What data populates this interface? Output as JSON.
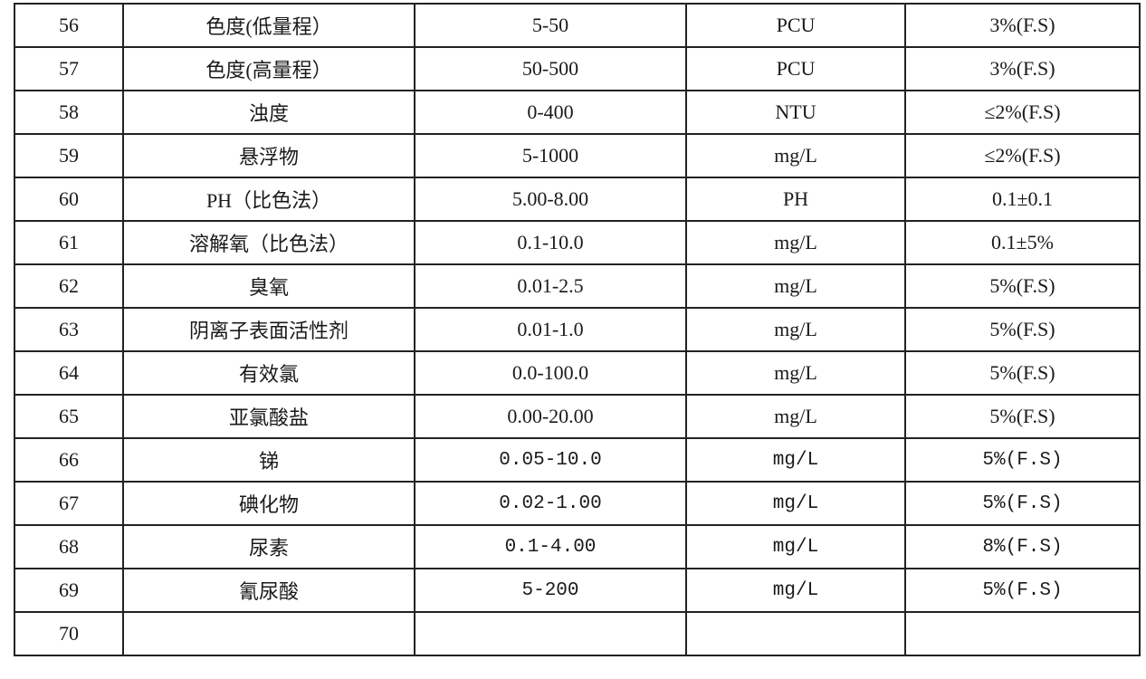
{
  "table": {
    "rows": [
      {
        "no": "56",
        "item": "色度(低量程）",
        "range": "5-50",
        "unit": "PCU",
        "accuracy": "3%(F.S)"
      },
      {
        "no": "57",
        "item": "色度(高量程）",
        "range": "50-500",
        "unit": "PCU",
        "accuracy": "3%(F.S)"
      },
      {
        "no": "58",
        "item": "浊度",
        "range": "0-400",
        "unit": "NTU",
        "accuracy": "≤2%(F.S)"
      },
      {
        "no": "59",
        "item": "悬浮物",
        "range": "5-1000",
        "unit": "mg/L",
        "accuracy": "≤2%(F.S)"
      },
      {
        "no": "60",
        "item": "PH（比色法）",
        "range": "5.00-8.00",
        "unit": "PH",
        "accuracy": "0.1±0.1"
      },
      {
        "no": "61",
        "item": "溶解氧（比色法）",
        "range": "0.1-10.0",
        "unit": "mg/L",
        "accuracy": "0.1±5%"
      },
      {
        "no": "62",
        "item": "臭氧",
        "range": "0.01-2.5",
        "unit": "mg/L",
        "accuracy": "5%(F.S)"
      },
      {
        "no": "63",
        "item": "阴离子表面活性剂",
        "range": "0.01-1.0",
        "unit": "mg/L",
        "accuracy": "5%(F.S)"
      },
      {
        "no": "64",
        "item": "有效氯",
        "range": "0.0-100.0",
        "unit": "mg/L",
        "accuracy": "5%(F.S)"
      },
      {
        "no": "65",
        "item": "亚氯酸盐",
        "range": "0.00-20.00",
        "unit": "mg/L",
        "accuracy": "5%(F.S)"
      },
      {
        "no": "66",
        "item": "锑",
        "range": "0.05-10.0",
        "unit": "mg/L",
        "accuracy": "5%(F.S)",
        "mono": true
      },
      {
        "no": "67",
        "item": "碘化物",
        "range": "0.02-1.00",
        "unit": "mg/L",
        "accuracy": "5%(F.S)",
        "mono": true
      },
      {
        "no": "68",
        "item": "尿素",
        "range": "0.1-4.00",
        "unit": "mg/L",
        "accuracy": "8%(F.S)",
        "mono": true
      },
      {
        "no": "69",
        "item": "氰尿酸",
        "range": "5-200",
        "unit": "mg/L",
        "accuracy": "5%(F.S)",
        "mono": true
      },
      {
        "no": "70",
        "item": "",
        "range": "",
        "unit": "",
        "accuracy": ""
      }
    ]
  }
}
